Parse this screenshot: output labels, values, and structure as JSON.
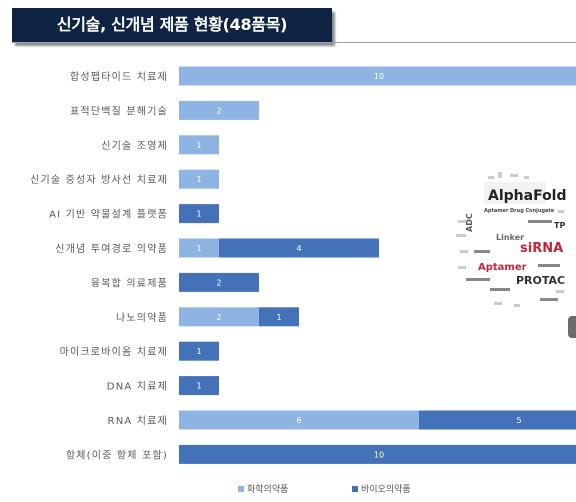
{
  "title": "신기술, 신개념 제품 현황(48품목)",
  "colors": {
    "chemical": "#8db4e2",
    "bio": "#4472b8",
    "title_bg": "#0f2343"
  },
  "chart_data": {
    "type": "bar",
    "orientation": "horizontal",
    "stacked": true,
    "categories": [
      "합성펩타이드 치료제",
      "표적단백질 분해기술",
      "신기술 조영제",
      "신기술 중성자 방사선 치료제",
      "AI 기반 약물설계 플랫폼",
      "신개념 투여경로 의약품",
      "융복합 의료제품",
      "나노의약품",
      "마이크로바이옴 치료제",
      "DNA 치료제",
      "RNA 치료제",
      "항체(이중 항체 포함)"
    ],
    "series": [
      {
        "name": "화학의약품",
        "color": "#8db4e2",
        "values": [
          10,
          2,
          1,
          1,
          0,
          1,
          0,
          2,
          0,
          0,
          6,
          0
        ]
      },
      {
        "name": "바이오의약품",
        "color": "#4472b8",
        "values": [
          0,
          0,
          0,
          0,
          1,
          4,
          2,
          1,
          1,
          1,
          5,
          10
        ]
      }
    ],
    "legend": "bottom",
    "grid": false
  },
  "word_cloud": {
    "words": [
      "AlphaFold",
      "Aptamer Drug Conjugate",
      "siRNA",
      "Aptamer",
      "PROTAC",
      "ADC",
      "Linker",
      "TPD"
    ]
  }
}
